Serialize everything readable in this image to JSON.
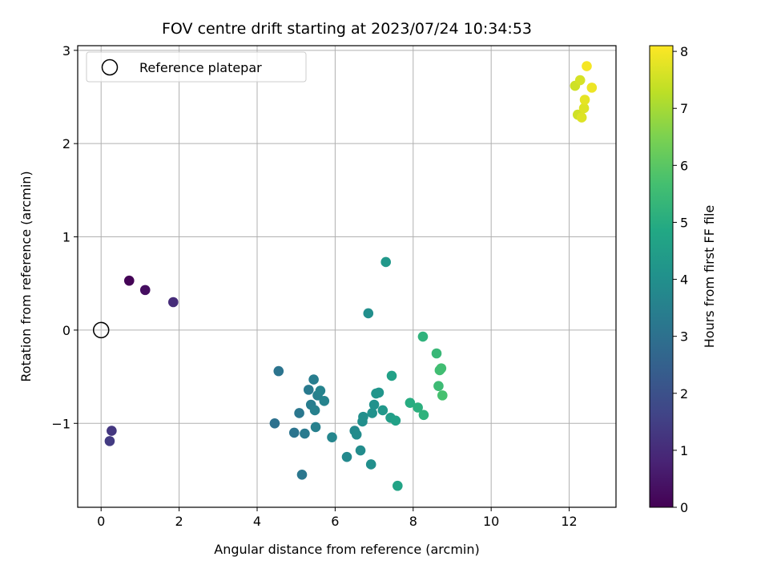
{
  "chart_data": {
    "type": "scatter",
    "title": "FOV centre drift starting at 2023/07/24 10:34:53",
    "xlabel": "Angular distance from reference (arcmin)",
    "ylabel": "Rotation from reference (arcmin)",
    "xlim": [
      -0.6,
      13.2
    ],
    "ylim": [
      -1.9,
      3.05
    ],
    "xticks": [
      0,
      2,
      4,
      6,
      8,
      10,
      12
    ],
    "yticks": [
      -1,
      0,
      1,
      2,
      3
    ],
    "xtick_labels": [
      "0",
      "2",
      "4",
      "6",
      "8",
      "10",
      "12"
    ],
    "ytick_labels": [
      "−1",
      "0",
      "1",
      "2",
      "3"
    ],
    "grid": true,
    "legend": {
      "placement": "top-left",
      "entries": [
        {
          "label": "Reference platepar",
          "marker": "open-circle"
        }
      ]
    },
    "reference_point": {
      "x": 0,
      "y": 0
    },
    "colorbar": {
      "label": "Hours from first FF file",
      "range": [
        0,
        8.1
      ],
      "ticks": [
        0,
        1,
        2,
        3,
        4,
        5,
        6,
        7,
        8
      ],
      "tick_labels": [
        "0",
        "1",
        "2",
        "3",
        "4",
        "5",
        "6",
        "7",
        "8"
      ],
      "colormap": "viridis"
    },
    "series": [
      {
        "points": [
          {
            "x": 0.72,
            "y": 0.53,
            "c": 0.05
          },
          {
            "x": 1.13,
            "y": 0.43,
            "c": 0.3
          },
          {
            "x": 1.85,
            "y": 0.3,
            "c": 1.0
          },
          {
            "x": 0.27,
            "y": -1.08,
            "c": 1.3
          },
          {
            "x": 0.22,
            "y": -1.19,
            "c": 1.4
          },
          {
            "x": 4.45,
            "y": -1.0,
            "c": 3.0
          },
          {
            "x": 4.55,
            "y": -0.44,
            "c": 3.1
          },
          {
            "x": 4.95,
            "y": -1.1,
            "c": 3.1
          },
          {
            "x": 5.08,
            "y": -0.89,
            "c": 3.2
          },
          {
            "x": 5.15,
            "y": -1.55,
            "c": 3.2
          },
          {
            "x": 5.22,
            "y": -1.11,
            "c": 3.3
          },
          {
            "x": 5.32,
            "y": -0.64,
            "c": 3.3
          },
          {
            "x": 5.38,
            "y": -0.8,
            "c": 3.4
          },
          {
            "x": 5.45,
            "y": -0.53,
            "c": 3.4
          },
          {
            "x": 5.48,
            "y": -0.86,
            "c": 3.5
          },
          {
            "x": 5.5,
            "y": -1.04,
            "c": 3.5
          },
          {
            "x": 5.55,
            "y": -0.7,
            "c": 3.5
          },
          {
            "x": 5.62,
            "y": -0.65,
            "c": 3.6
          },
          {
            "x": 5.72,
            "y": -0.76,
            "c": 3.6
          },
          {
            "x": 5.92,
            "y": -1.15,
            "c": 3.7
          },
          {
            "x": 6.3,
            "y": -1.36,
            "c": 3.8
          },
          {
            "x": 6.5,
            "y": -1.08,
            "c": 3.8
          },
          {
            "x": 6.55,
            "y": -1.12,
            "c": 3.9
          },
          {
            "x": 6.65,
            "y": -1.29,
            "c": 3.9
          },
          {
            "x": 6.7,
            "y": -0.98,
            "c": 4.0
          },
          {
            "x": 6.72,
            "y": -0.93,
            "c": 4.0
          },
          {
            "x": 6.85,
            "y": 0.18,
            "c": 4.0
          },
          {
            "x": 6.92,
            "y": -1.44,
            "c": 4.0
          },
          {
            "x": 6.95,
            "y": -0.89,
            "c": 4.1
          },
          {
            "x": 7.0,
            "y": -0.8,
            "c": 4.1
          },
          {
            "x": 7.05,
            "y": -0.68,
            "c": 4.2
          },
          {
            "x": 7.12,
            "y": -0.67,
            "c": 4.2
          },
          {
            "x": 7.22,
            "y": -0.86,
            "c": 4.3
          },
          {
            "x": 7.3,
            "y": 0.73,
            "c": 4.3
          },
          {
            "x": 7.42,
            "y": -0.94,
            "c": 4.5
          },
          {
            "x": 7.45,
            "y": -0.49,
            "c": 4.6
          },
          {
            "x": 7.55,
            "y": -0.97,
            "c": 4.6
          },
          {
            "x": 7.6,
            "y": -1.67,
            "c": 4.7
          },
          {
            "x": 7.92,
            "y": -0.78,
            "c": 5.0
          },
          {
            "x": 8.12,
            "y": -0.83,
            "c": 5.1
          },
          {
            "x": 8.25,
            "y": -0.07,
            "c": 5.2
          },
          {
            "x": 8.27,
            "y": -0.91,
            "c": 5.2
          },
          {
            "x": 8.6,
            "y": -0.25,
            "c": 5.4
          },
          {
            "x": 8.65,
            "y": -0.6,
            "c": 5.5
          },
          {
            "x": 8.68,
            "y": -0.43,
            "c": 5.6
          },
          {
            "x": 8.72,
            "y": -0.41,
            "c": 5.6
          },
          {
            "x": 8.75,
            "y": -0.7,
            "c": 5.7
          },
          {
            "x": 12.15,
            "y": 2.62,
            "c": 7.5
          },
          {
            "x": 12.22,
            "y": 2.31,
            "c": 7.5
          },
          {
            "x": 12.28,
            "y": 2.68,
            "c": 7.6
          },
          {
            "x": 12.32,
            "y": 2.28,
            "c": 7.7
          },
          {
            "x": 12.38,
            "y": 2.38,
            "c": 7.7
          },
          {
            "x": 12.4,
            "y": 2.47,
            "c": 7.8
          },
          {
            "x": 12.45,
            "y": 2.83,
            "c": 8.0
          },
          {
            "x": 12.58,
            "y": 2.6,
            "c": 7.9
          }
        ]
      }
    ]
  }
}
